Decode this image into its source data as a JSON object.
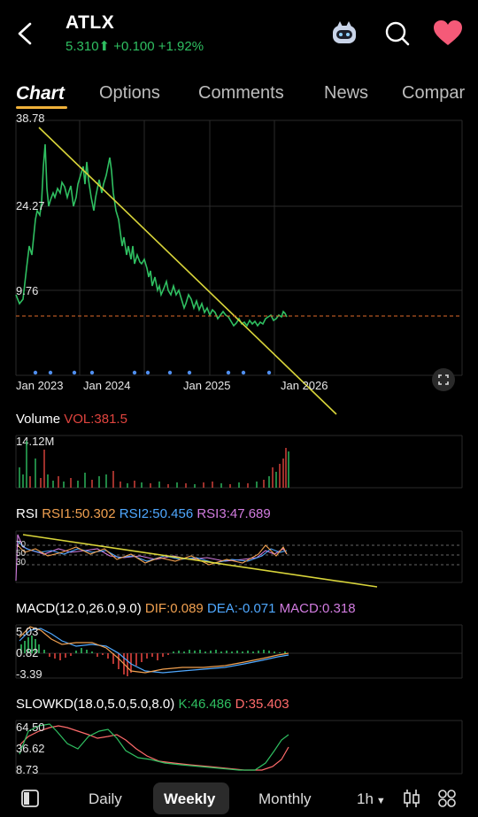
{
  "header": {
    "ticker": "ATLX",
    "price": "5.310",
    "change": "+0.100",
    "change_pct": "+1.92%"
  },
  "tabs": [
    "Chart",
    "Options",
    "Comments",
    "News",
    "Compar"
  ],
  "main_chart": {
    "y_ticks": [
      "38.78",
      "24.27",
      "9.76"
    ],
    "x_ticks": [
      "Jan 2023",
      "Jan 2024",
      "Jan 2025",
      "Jan 2026"
    ]
  },
  "volume": {
    "title": "Volume",
    "vol_label": "VOL:381.5",
    "max_label": "14.12M"
  },
  "rsi": {
    "title": "RSI",
    "rsi1": "RSI1:50.302",
    "rsi2": "RSI2:50.456",
    "rsi3": "RSI3:47.689",
    "levels": [
      "70",
      "50",
      "30"
    ]
  },
  "macd": {
    "title": "MACD(12.0,26.0,9.0)",
    "dif": "DIF:0.089",
    "dea": "DEA:-0.071",
    "macd": "MACD:0.318",
    "ticks": [
      "5.03",
      "0.82",
      "-3.39"
    ]
  },
  "slowkd": {
    "title": "SLOWKD(18.0,5.0,5.0,8.0)",
    "k": "K:46.486",
    "d": "D:35.403",
    "ticks": [
      "64.50",
      "36.62",
      "8.73"
    ]
  },
  "bottom": {
    "daily": "Daily",
    "weekly": "Weekly",
    "monthly": "Monthly",
    "interval": "1h"
  },
  "colors": {
    "up": "#2fbf61",
    "down": "#e0443e",
    "trendline": "#d8d43a",
    "dif": "#f0a050",
    "dea": "#4fa8ff",
    "macd_label": "#d27ce0"
  }
}
